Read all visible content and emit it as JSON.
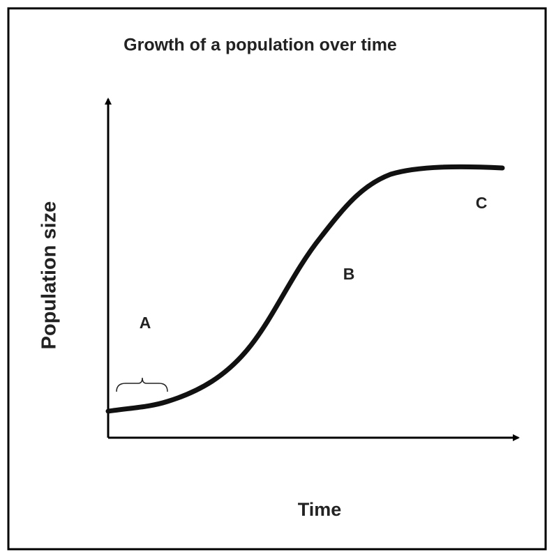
{
  "title": "Growth of a population over time",
  "y_axis_label": "Population size",
  "x_axis_label": "Time",
  "annotations": [
    "A",
    "B",
    "C"
  ]
}
